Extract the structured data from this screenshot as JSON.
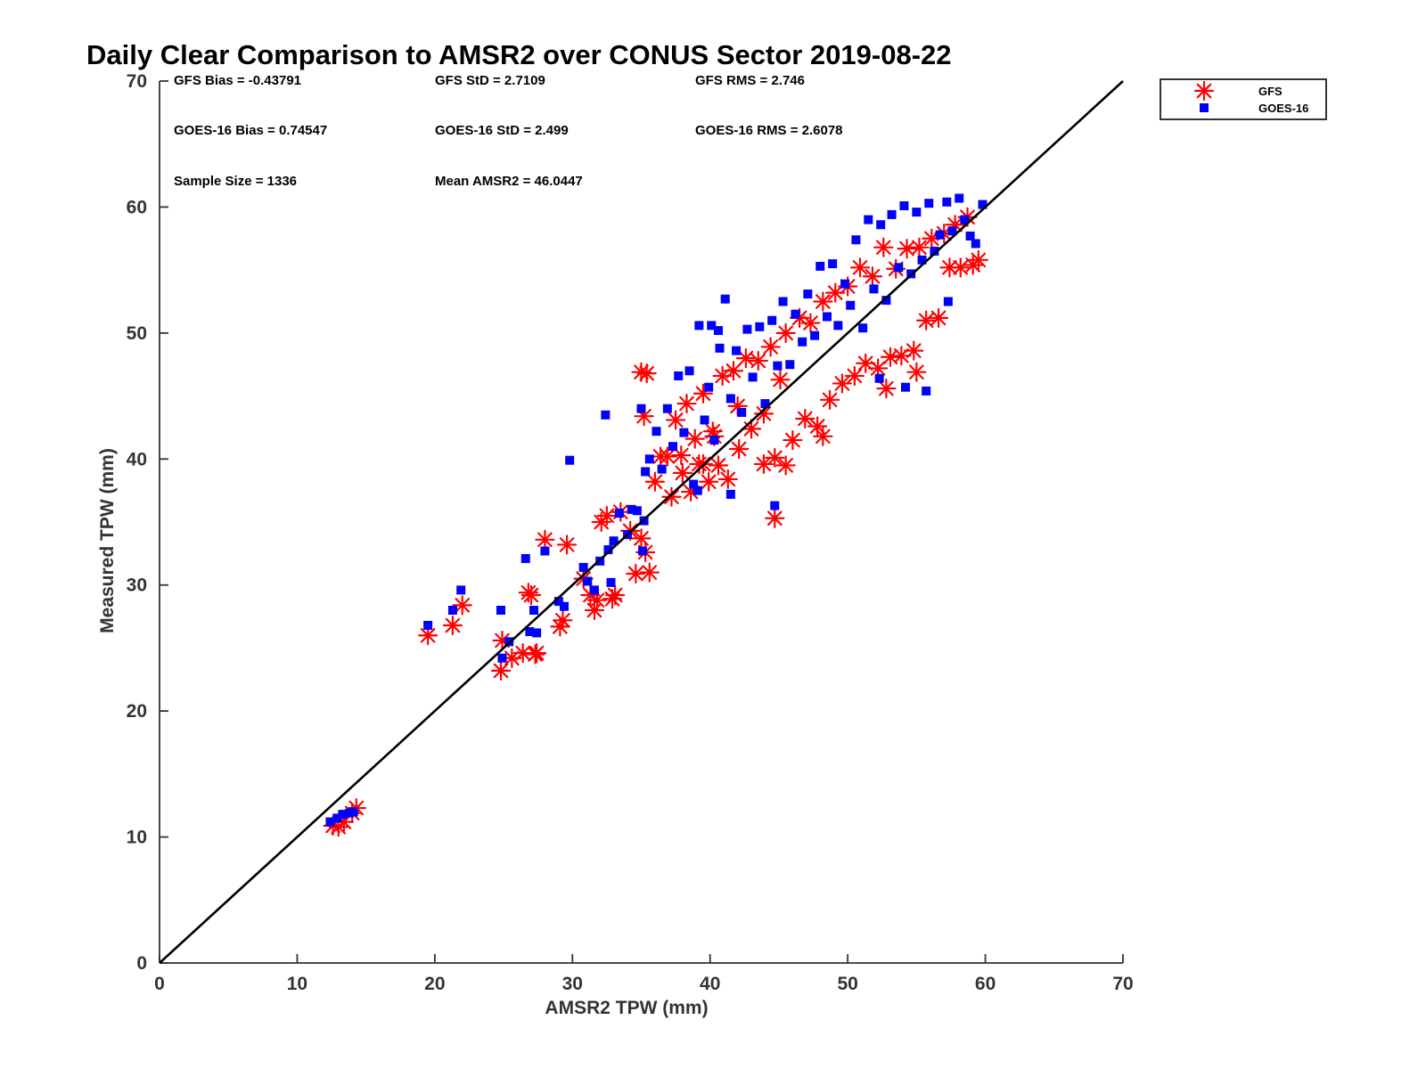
{
  "chart_data": {
    "type": "scatter",
    "title": "Daily Clear Comparison to AMSR2 over CONUS Sector 2019-08-22",
    "xlabel": "AMSR2 TPW (mm)",
    "ylabel": "Measured TPW (mm)",
    "xlim": [
      0,
      70
    ],
    "ylim": [
      0,
      70
    ],
    "xticks": [
      "0",
      "10",
      "20",
      "30",
      "40",
      "50",
      "60",
      "70"
    ],
    "yticks": [
      "0",
      "10",
      "20",
      "30",
      "40",
      "50",
      "60",
      "70"
    ],
    "grid": false,
    "legend_position": "outside-top-right",
    "reference_line": {
      "x": [
        0,
        70
      ],
      "y": [
        0,
        70
      ],
      "color": "#000000"
    },
    "stats": {
      "gfs_bias": "GFS Bias = -0.43791",
      "gfs_std": "GFS StD = 2.7109",
      "gfs_rms": "GFS RMS = 2.746",
      "goes_bias": "GOES-16 Bias = 0.74547",
      "goes_std": "GOES-16 StD = 2.499",
      "goes_rms": "GOES-16 RMS = 2.6078",
      "sample_size": "Sample Size = 1336",
      "mean_amsr2": "Mean AMSR2 = 46.0447"
    },
    "series": [
      {
        "name": "GFS",
        "marker": "asterisk",
        "color": "#ff0000",
        "x": [
          12.6,
          13.0,
          13.4,
          14.0,
          14.3,
          19.5,
          21.3,
          22.0,
          24.8,
          24.9,
          25.6,
          26.4,
          26.8,
          27.0,
          27.3,
          27.4,
          28.0,
          29.1,
          29.3,
          29.6,
          30.8,
          31.3,
          31.6,
          31.8,
          32.1,
          32.5,
          32.9,
          33.1,
          33.5,
          34.2,
          34.6,
          35.0,
          35.3,
          35.6,
          35.2,
          36.0,
          36.4,
          37.2,
          37.5,
          37.9,
          38.0,
          38.3,
          38.6,
          38.9,
          39.2,
          39.5,
          39.9,
          40.3,
          40.6,
          40.9,
          41.3,
          41.7,
          42.1,
          42.6,
          43.0,
          43.5,
          43.9,
          44.4,
          44.7,
          45.1,
          45.5,
          46.0,
          46.5,
          46.9,
          47.3,
          47.8,
          48.2,
          48.7,
          49.1,
          49.6,
          50.0,
          50.5,
          50.9,
          51.3,
          51.8,
          52.2,
          52.6,
          53.1,
          53.5,
          53.9,
          54.3,
          54.8,
          55.2,
          55.7,
          56.1,
          56.6,
          57.0,
          57.4,
          57.8,
          58.2,
          58.7,
          59.1,
          59.5,
          35.0,
          35.4,
          44.7,
          52.8,
          55.0,
          43.9,
          36.9,
          42.0,
          39.5,
          45.5,
          48.2,
          40.2
        ],
        "y": [
          10.9,
          10.8,
          11.2,
          11.9,
          12.3,
          26.0,
          26.8,
          28.4,
          23.2,
          25.6,
          24.2,
          24.6,
          29.4,
          29.2,
          24.5,
          24.6,
          33.6,
          26.7,
          27.2,
          33.2,
          30.5,
          29.2,
          28.0,
          28.8,
          35.0,
          35.5,
          28.9,
          29.2,
          35.8,
          34.3,
          30.9,
          33.7,
          32.6,
          31.0,
          43.4,
          38.2,
          40.2,
          37.0,
          43.1,
          40.3,
          38.9,
          44.4,
          37.4,
          41.6,
          39.6,
          45.2,
          38.2,
          41.8,
          39.5,
          46.6,
          38.4,
          47.0,
          40.8,
          48.0,
          42.4,
          47.8,
          39.6,
          48.9,
          40.1,
          46.3,
          50.0,
          41.5,
          51.2,
          43.2,
          50.8,
          42.6,
          52.5,
          44.7,
          53.2,
          46.0,
          53.7,
          46.6,
          55.2,
          47.6,
          54.5,
          47.2,
          56.8,
          48.1,
          55.1,
          48.2,
          56.7,
          48.6,
          56.8,
          51.0,
          57.5,
          51.2,
          57.9,
          55.2,
          58.6,
          55.2,
          59.2,
          55.4,
          55.8,
          46.9,
          46.8,
          35.3,
          45.6,
          46.9,
          43.6,
          40.2,
          44.2,
          39.6,
          39.5,
          41.8,
          42.2
        ]
      },
      {
        "name": "GOES-16",
        "marker": "square",
        "color": "#0000ff",
        "x": [
          12.4,
          12.9,
          13.3,
          13.8,
          14.1,
          19.5,
          21.3,
          21.9,
          24.8,
          24.9,
          25.4,
          26.6,
          26.9,
          27.2,
          27.4,
          28.0,
          29.0,
          29.4,
          29.8,
          30.8,
          31.1,
          31.6,
          32.0,
          32.4,
          32.8,
          33.0,
          33.4,
          34.0,
          34.3,
          34.7,
          35.0,
          35.3,
          35.6,
          35.2,
          36.1,
          36.5,
          36.9,
          37.3,
          37.7,
          38.1,
          38.5,
          38.8,
          39.2,
          39.6,
          39.9,
          40.3,
          40.7,
          41.1,
          41.5,
          41.9,
          42.3,
          42.7,
          43.1,
          43.6,
          44.0,
          44.5,
          44.9,
          45.3,
          45.8,
          46.2,
          46.7,
          47.1,
          47.6,
          48.0,
          48.5,
          48.9,
          49.3,
          49.8,
          50.2,
          50.6,
          51.1,
          51.5,
          51.9,
          52.4,
          52.8,
          53.2,
          53.7,
          54.1,
          54.6,
          55.0,
          55.4,
          55.9,
          56.3,
          56.7,
          57.2,
          57.6,
          58.1,
          58.5,
          58.9,
          59.3,
          59.8,
          41.5,
          44.7,
          32.6,
          35.1,
          39.1,
          40.1,
          40.6,
          52.3,
          54.2,
          55.7,
          57.3
        ],
        "y": [
          11.2,
          11.5,
          11.8,
          11.9,
          12.0,
          26.8,
          28.0,
          29.6,
          28.0,
          24.2,
          25.5,
          32.1,
          26.3,
          28.0,
          26.2,
          32.7,
          28.7,
          28.3,
          39.9,
          31.4,
          30.3,
          29.6,
          31.9,
          43.5,
          30.2,
          33.5,
          35.7,
          34.0,
          36.0,
          35.9,
          44.0,
          39.0,
          40.0,
          35.1,
          42.2,
          39.2,
          44.0,
          41.0,
          46.6,
          42.1,
          47.0,
          38.0,
          50.6,
          43.1,
          45.7,
          41.5,
          48.8,
          52.7,
          44.8,
          48.6,
          43.7,
          50.3,
          46.5,
          50.5,
          44.4,
          51.0,
          47.4,
          52.5,
          47.5,
          51.5,
          49.3,
          53.1,
          49.8,
          55.3,
          51.3,
          55.5,
          50.6,
          53.9,
          52.2,
          57.4,
          50.4,
          59.0,
          53.5,
          58.6,
          52.6,
          59.4,
          55.2,
          60.1,
          54.7,
          59.6,
          55.8,
          60.3,
          56.5,
          57.8,
          60.4,
          58.1,
          60.7,
          59.0,
          57.7,
          57.1,
          60.2,
          37.2,
          36.3,
          32.8,
          32.7,
          37.5,
          50.6,
          50.2,
          46.4,
          45.7,
          45.4,
          52.5
        ]
      }
    ]
  }
}
